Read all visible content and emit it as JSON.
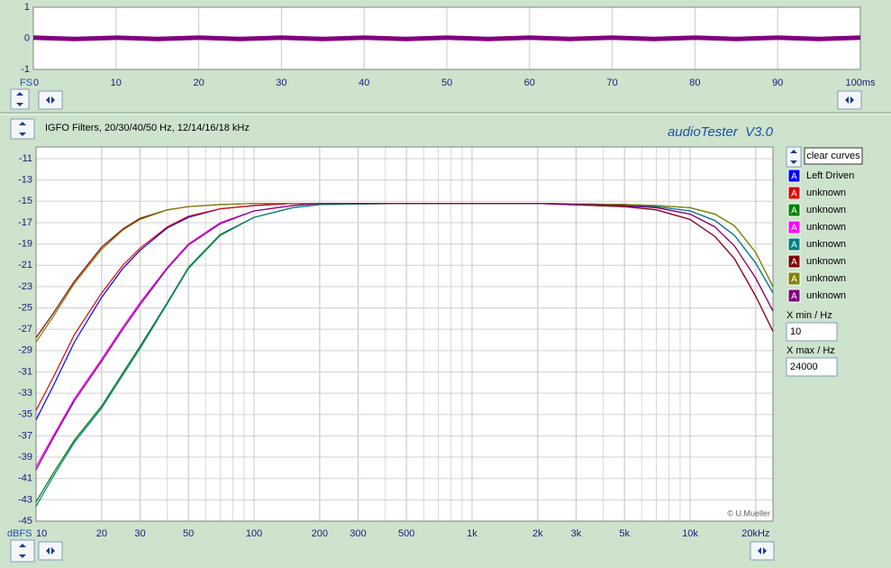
{
  "chart_data": [
    {
      "type": "line",
      "ylabel": "FS",
      "x": [
        0,
        5,
        10,
        15,
        20,
        25,
        30,
        35,
        40,
        45,
        50,
        55,
        60,
        65,
        70,
        75,
        80,
        85,
        90,
        95,
        100
      ],
      "series": [
        {
          "name": "Left Driven",
          "color": "#800080",
          "values": [
            0.02,
            -0.02,
            0.02,
            -0.02,
            0.02,
            -0.02,
            0.02,
            -0.02,
            0.02,
            -0.02,
            0.02,
            -0.02,
            0.02,
            -0.02,
            0.02,
            -0.02,
            0.02,
            -0.02,
            0.02,
            -0.02,
            0.02
          ]
        }
      ],
      "xlim": [
        0,
        100
      ],
      "ylim": [
        -1,
        1
      ],
      "xticks": [
        0,
        10,
        20,
        30,
        40,
        50,
        60,
        70,
        80,
        90,
        {
          "value": 100,
          "label": "100ms"
        }
      ],
      "yticks": [
        -1,
        0,
        1
      ],
      "grid": true
    },
    {
      "type": "line",
      "ylabel": "dBFS",
      "xscale": "log",
      "x": [
        10,
        12,
        15,
        20,
        25,
        30,
        40,
        50,
        70,
        100,
        150,
        200,
        500,
        1000,
        2000,
        5000,
        7000,
        10000,
        13000,
        16000,
        20000,
        24000
      ],
      "series": [
        {
          "name": "Left Driven",
          "color": "#0000ff",
          "values": [
            -35.5,
            -32.3,
            -28.2,
            -24.0,
            -21.3,
            -19.6,
            -17.5,
            -16.5,
            -15.7,
            -15.4,
            -15.2,
            -15.2,
            -15.2,
            -15.2,
            -15.2,
            -15.3,
            -15.5,
            -15.9,
            -16.8,
            -18.2,
            -20.8,
            -23.6
          ]
        },
        {
          "name": "unknown",
          "color": "#e00000",
          "values": [
            -34.6,
            -31.5,
            -27.5,
            -23.6,
            -21.0,
            -19.4,
            -17.4,
            -16.4,
            -15.7,
            -15.4,
            -15.2,
            -15.2,
            -15.2,
            -15.2,
            -15.2,
            -15.4,
            -15.6,
            -16.2,
            -17.4,
            -19.2,
            -22.2,
            -25.3
          ]
        },
        {
          "name": "unknown",
          "color": "#008000",
          "values": [
            -43.2,
            -40.5,
            -37.4,
            -34.2,
            -31.1,
            -28.6,
            -24.5,
            -21.2,
            -18.1,
            -16.5,
            -15.6,
            -15.3,
            -15.2,
            -15.2,
            -15.2,
            -15.3,
            -15.4,
            -15.6,
            -16.2,
            -17.3,
            -19.8,
            -23.0
          ]
        },
        {
          "name": "unknown",
          "color": "#ff00ff",
          "values": [
            -39.9,
            -37.0,
            -33.5,
            -29.8,
            -26.8,
            -24.5,
            -21.2,
            -19.0,
            -17.0,
            -15.9,
            -15.4,
            -15.2,
            -15.2,
            -15.2,
            -15.2,
            -15.5,
            -15.8,
            -16.7,
            -18.3,
            -20.4,
            -23.9,
            -27.2
          ]
        },
        {
          "name": "unknown",
          "color": "#008080",
          "values": [
            -43.6,
            -40.8,
            -37.6,
            -34.4,
            -31.3,
            -28.8,
            -24.6,
            -21.3,
            -18.2,
            -16.5,
            -15.6,
            -15.3,
            -15.2,
            -15.2,
            -15.2,
            -15.5,
            -15.5,
            -15.9,
            -16.8,
            -18.2,
            -20.8,
            -23.6
          ]
        },
        {
          "name": "unknown",
          "color": "#800000",
          "values": [
            -27.8,
            -25.5,
            -22.5,
            -19.3,
            -17.6,
            -16.6,
            -15.8,
            -15.5,
            -15.3,
            -15.2,
            -15.2,
            -15.2,
            -15.2,
            -15.2,
            -15.2,
            -15.5,
            -15.8,
            -16.7,
            -18.3,
            -20.4,
            -23.9,
            -27.2
          ]
        },
        {
          "name": "unknown",
          "color": "#808000",
          "values": [
            -28.2,
            -25.8,
            -22.7,
            -19.5,
            -17.7,
            -16.7,
            -15.8,
            -15.5,
            -15.3,
            -15.2,
            -15.2,
            -15.2,
            -15.2,
            -15.2,
            -15.2,
            -15.3,
            -15.4,
            -15.6,
            -16.2,
            -17.3,
            -19.8,
            -23.0
          ]
        },
        {
          "name": "unknown",
          "color": "#800080",
          "values": [
            -40.2,
            -37.2,
            -33.7,
            -30.0,
            -27.0,
            -24.7,
            -21.3,
            -19.1,
            -17.1,
            -15.9,
            -15.4,
            -15.2,
            -15.2,
            -15.2,
            -15.2,
            -15.4,
            -15.6,
            -16.2,
            -17.4,
            -19.2,
            -22.2,
            -25.3
          ]
        }
      ],
      "xlim": [
        10,
        24000
      ],
      "ylim": [
        -45,
        -9.9
      ],
      "xticks": [
        10,
        20,
        30,
        50,
        100,
        200,
        300,
        500,
        {
          "value": 1000,
          "label": "1k"
        },
        {
          "value": 2000,
          "label": "2k"
        },
        {
          "value": 3000,
          "label": "3k"
        },
        {
          "value": 5000,
          "label": "5k"
        },
        {
          "value": 10000,
          "label": "10k"
        },
        {
          "value": 20000,
          "label": "20kHz"
        }
      ],
      "yticks": [
        -45,
        -43,
        -41,
        -39,
        -37,
        -35,
        -33,
        -31,
        -29,
        -27,
        -25,
        -23,
        -21,
        -19,
        -17,
        -15,
        -13,
        -11
      ],
      "grid": true
    }
  ],
  "ui": {
    "subtitle": "IGFO Filters, 20/30/40/50 Hz, 12/14/16/18 kHz",
    "app": "audioTester  V3.0",
    "clear": "clear curves",
    "legend_icon": "A",
    "xmin_label": "X min / Hz",
    "xmin": "10",
    "xmax_label": "X max / Hz",
    "xmax": "24000",
    "credit": "© U.Mueller"
  }
}
